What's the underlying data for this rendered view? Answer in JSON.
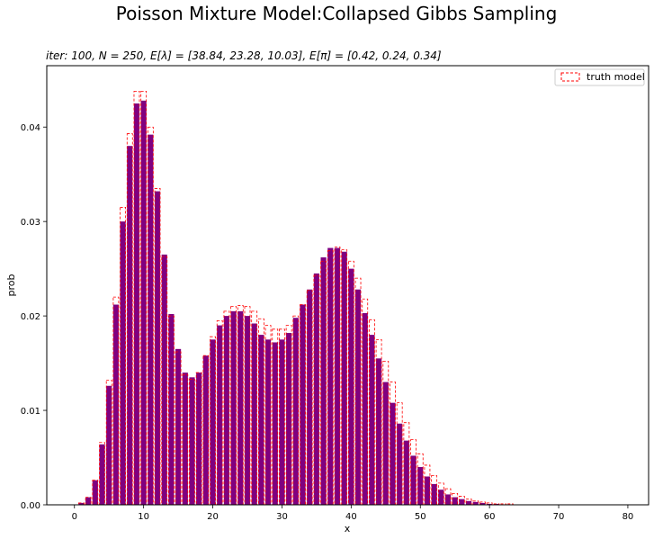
{
  "chart_data": {
    "type": "bar",
    "title": "Poisson Mixture Model:Collapsed Gibbs Sampling",
    "subtitle": "iter: 100, N = 250, E[λ] = [38.84, 23.28, 10.03], E[π] = [0.42, 0.24, 0.34]",
    "xlabel": "x",
    "ylabel": "prob",
    "xlim": [
      -4,
      83
    ],
    "ylim": [
      0,
      0.0465
    ],
    "x_ticks": [
      0,
      10,
      20,
      30,
      40,
      50,
      60,
      70,
      80
    ],
    "y_ticks": [
      0.0,
      0.01,
      0.02,
      0.03,
      0.04
    ],
    "y_tick_labels": [
      "0.00",
      "0.01",
      "0.02",
      "0.03",
      "0.04"
    ],
    "grid": false,
    "legend_position": "top-right",
    "x": [
      0,
      1,
      2,
      3,
      4,
      5,
      6,
      7,
      8,
      9,
      10,
      11,
      12,
      13,
      14,
      15,
      16,
      17,
      18,
      19,
      20,
      21,
      22,
      23,
      24,
      25,
      26,
      27,
      28,
      29,
      30,
      31,
      32,
      33,
      34,
      35,
      36,
      37,
      38,
      39,
      40,
      41,
      42,
      43,
      44,
      45,
      46,
      47,
      48,
      49,
      50,
      51,
      52,
      53,
      54,
      55,
      56,
      57,
      58,
      59,
      60,
      61,
      62,
      63,
      64,
      65,
      66,
      67,
      68,
      69,
      70,
      71,
      72,
      73,
      74,
      75,
      76,
      77,
      78,
      79,
      80
    ],
    "series": [
      {
        "role": "estimate",
        "style": "filled",
        "color": "#800080",
        "values": [
          0.0,
          0.0002,
          0.0008,
          0.0026,
          0.0064,
          0.0126,
          0.0212,
          0.03,
          0.038,
          0.0425,
          0.0428,
          0.0392,
          0.0332,
          0.0265,
          0.0202,
          0.0165,
          0.014,
          0.0135,
          0.014,
          0.0158,
          0.0175,
          0.019,
          0.02,
          0.0205,
          0.0205,
          0.02,
          0.0192,
          0.018,
          0.0175,
          0.0172,
          0.0175,
          0.0182,
          0.0198,
          0.0212,
          0.0228,
          0.0245,
          0.0262,
          0.0272,
          0.0272,
          0.0268,
          0.025,
          0.0228,
          0.0203,
          0.018,
          0.0155,
          0.013,
          0.0108,
          0.0086,
          0.0068,
          0.0052,
          0.004,
          0.003,
          0.0022,
          0.0016,
          0.0011,
          0.0008,
          0.0006,
          0.0004,
          0.0003,
          0.0002,
          0.0001,
          0.0001,
          0.0,
          0.0,
          0.0,
          0.0,
          0.0,
          0.0,
          0.0,
          0.0,
          0.0,
          0.0,
          0.0,
          0.0,
          0.0,
          0.0,
          0.0,
          0.0,
          0.0,
          0.0,
          0.0
        ]
      },
      {
        "name": "truth model",
        "style": "dashed-outline",
        "color": "#ff0000",
        "values": [
          0.0,
          0.0002,
          0.0008,
          0.0026,
          0.0066,
          0.0132,
          0.022,
          0.0315,
          0.0393,
          0.0438,
          0.0438,
          0.04,
          0.0335,
          0.0263,
          0.02,
          0.0162,
          0.0138,
          0.0133,
          0.014,
          0.0158,
          0.0178,
          0.0195,
          0.0205,
          0.021,
          0.0211,
          0.021,
          0.0205,
          0.0197,
          0.019,
          0.0186,
          0.0186,
          0.019,
          0.02,
          0.0212,
          0.0227,
          0.0243,
          0.0258,
          0.0269,
          0.0273,
          0.027,
          0.0258,
          0.024,
          0.0218,
          0.0196,
          0.0175,
          0.0152,
          0.013,
          0.0108,
          0.0087,
          0.0069,
          0.0054,
          0.0042,
          0.0031,
          0.0023,
          0.0017,
          0.0012,
          0.0009,
          0.0006,
          0.0004,
          0.0003,
          0.0002,
          0.0001,
          0.0001,
          0.0001,
          0.0,
          0.0,
          0.0,
          0.0,
          0.0,
          0.0,
          0.0,
          0.0,
          0.0,
          0.0,
          0.0,
          0.0,
          0.0,
          0.0,
          0.0,
          0.0,
          0.0
        ]
      }
    ]
  }
}
